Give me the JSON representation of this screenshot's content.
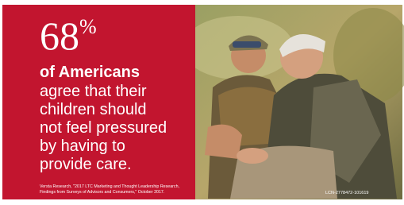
{
  "stat": {
    "number": "68",
    "unit": "%"
  },
  "headline": "of Americans",
  "body_lines": [
    "agree that their",
    "children should",
    "not feel pressured",
    "by having to",
    "provide care."
  ],
  "source_lines": [
    "Versta Research, \"2017 LTC Marketing and Thought Leadership Research,",
    "Findings from Surveys of Advisors and Consumers,\" October 2017."
  ],
  "code": "LCN-2778472-101619"
}
